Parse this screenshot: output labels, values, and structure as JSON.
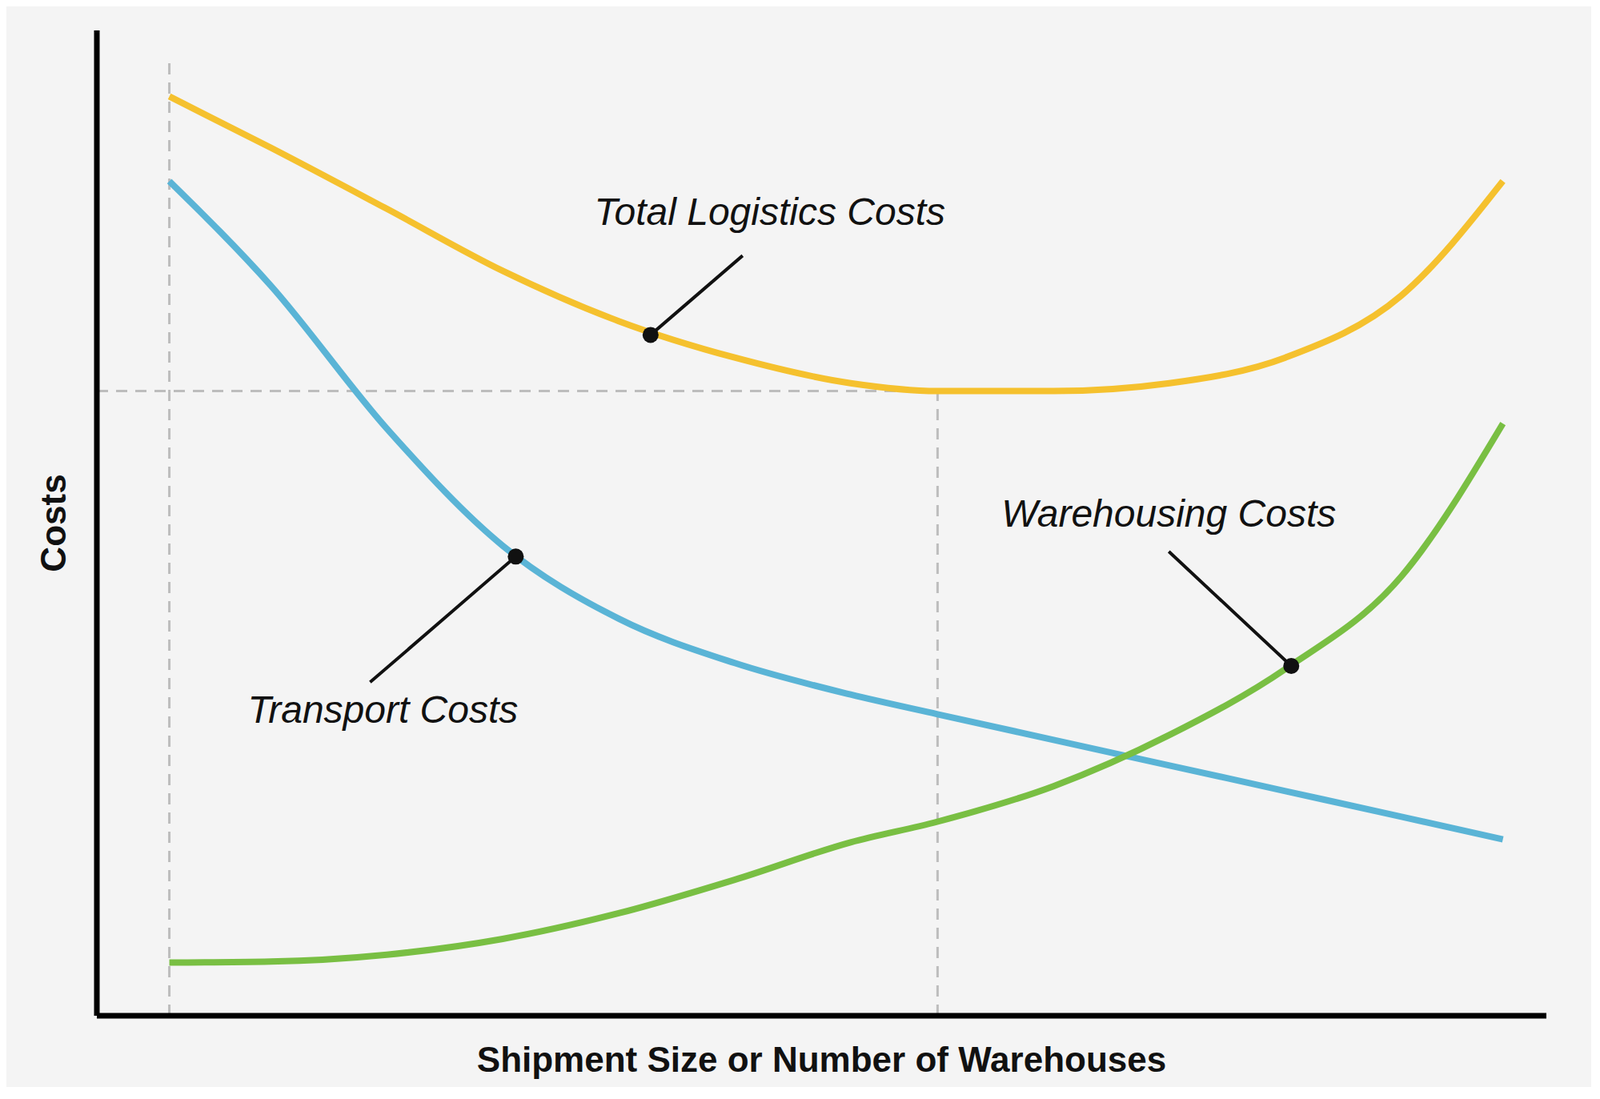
{
  "chart_data": {
    "type": "line",
    "x_label": "Shipment Size or Number of Warehouses",
    "y_label": "Costs",
    "x": [
      5,
      12,
      20,
      28,
      36,
      44,
      52,
      58,
      66,
      74,
      82,
      90,
      97
    ],
    "series": [
      {
        "name": "Total Logistics Costs",
        "color": "#f5c12e",
        "values": [
          93.3,
          88.1,
          81.9,
          75.6,
          70.5,
          66.8,
          64.2,
          63.4,
          63.4,
          64.2,
          66.8,
          73.1,
          84.7
        ]
      },
      {
        "name": "Transport Costs",
        "color": "#5ab4d6",
        "values": [
          84.7,
          74.1,
          59.6,
          47.7,
          40.3,
          35.8,
          32.6,
          30.6,
          28.0,
          25.4,
          22.8,
          20.2,
          17.9
        ]
      },
      {
        "name": "Warehousing Costs",
        "color": "#79bf43",
        "values": [
          5.4,
          5.5,
          6.2,
          7.8,
          10.4,
          13.8,
          17.6,
          19.7,
          23.3,
          28.5,
          35.2,
          44.6,
          60.1
        ]
      }
    ],
    "xlim": [
      0,
      100
    ],
    "ylim": [
      0,
      100
    ],
    "tick_labels": false,
    "grid": false,
    "reference_lines": [
      {
        "x": [
          5,
          5
        ],
        "y": [
          0,
          97
        ]
      },
      {
        "x": [
          0,
          58
        ],
        "y": [
          63.4,
          63.4
        ]
      },
      {
        "x": [
          58,
          58
        ],
        "y": [
          0,
          63.4
        ]
      }
    ],
    "annotations": [
      {
        "text": "Total Logistics Costs",
        "x": 38.2,
        "y": 69.1
      },
      {
        "text": "Transport Costs",
        "x": 28.9,
        "y": 46.6
      },
      {
        "text": "Warehousing Costs",
        "x": 82.4,
        "y": 35.5
      }
    ]
  }
}
